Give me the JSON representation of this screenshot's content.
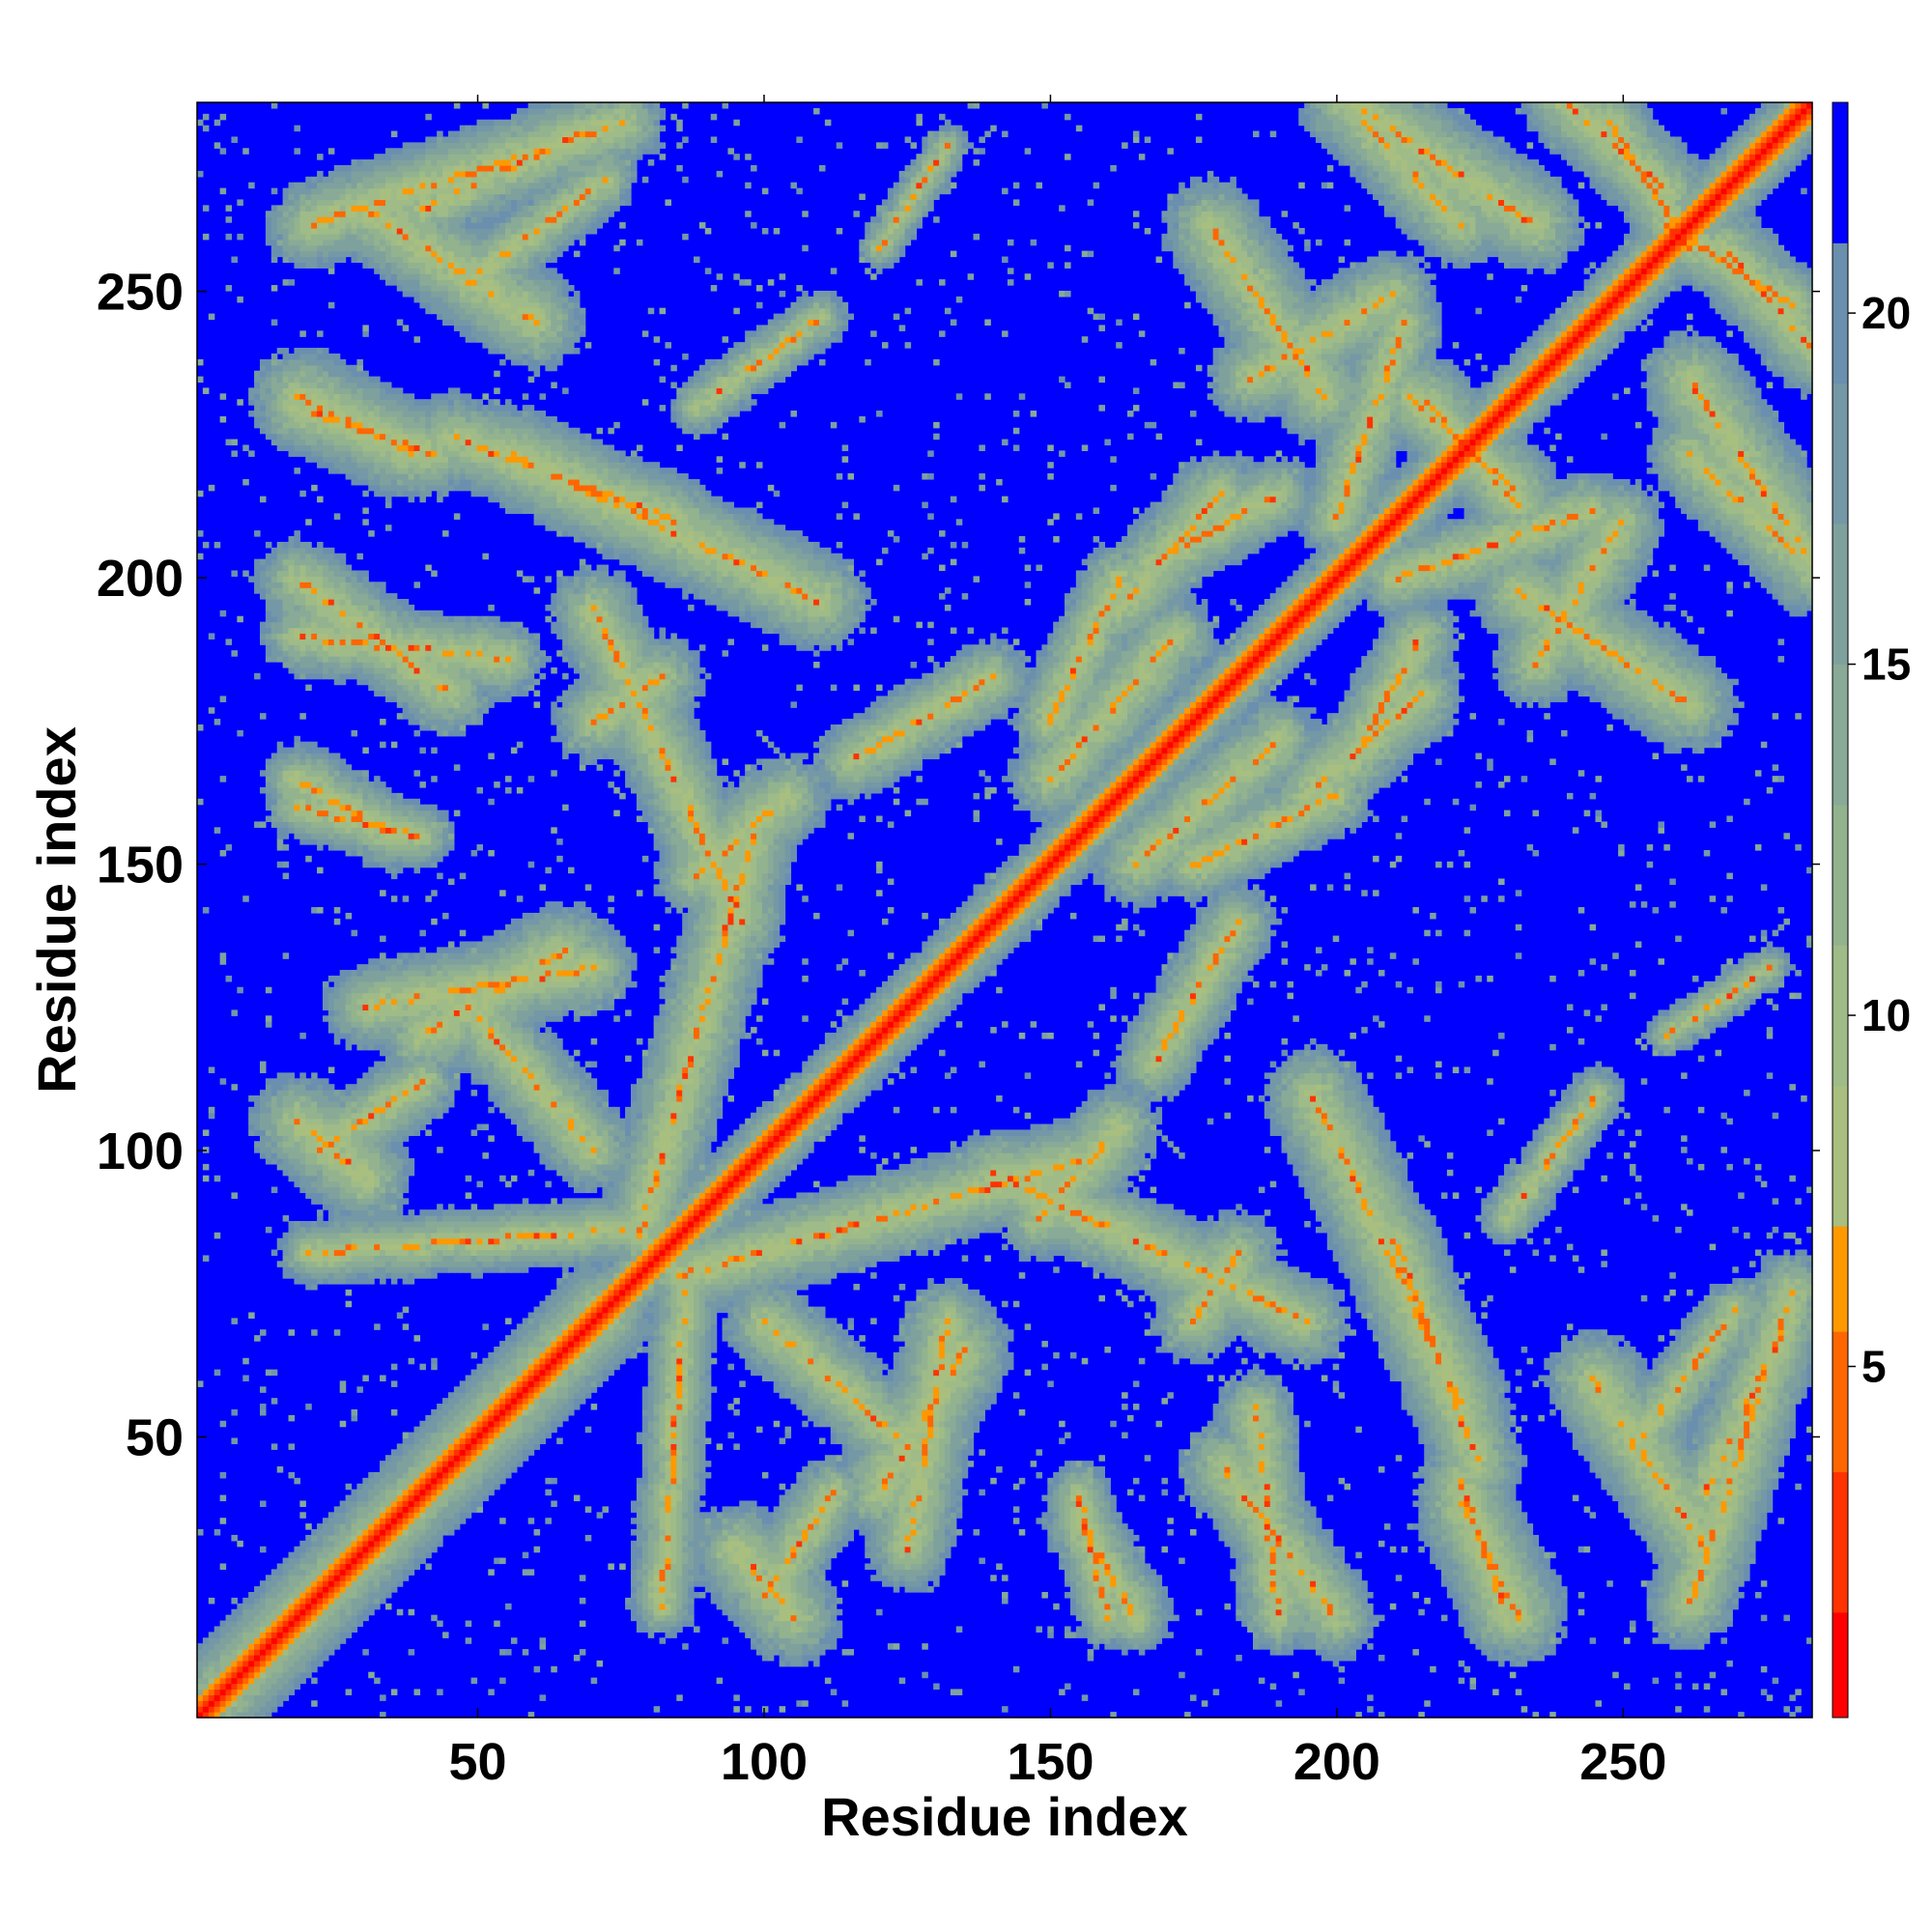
{
  "chart_data": {
    "type": "heatmap",
    "title": "",
    "xlabel": "Residue index",
    "ylabel": "Residue index",
    "xlim": [
      1,
      283
    ],
    "ylim": [
      1,
      283
    ],
    "xticks": [
      50,
      100,
      150,
      200,
      250
    ],
    "yticks": [
      50,
      100,
      150,
      200,
      250
    ],
    "grid": false,
    "colorbar": {
      "ticks": [
        5,
        10,
        15,
        20
      ],
      "range": [
        0,
        23
      ],
      "levels": [
        {
          "from": 0.0,
          "to": 1.5,
          "color": "#ff0000"
        },
        {
          "from": 1.5,
          "to": 3.5,
          "color": "#ff3300"
        },
        {
          "from": 3.5,
          "to": 5.5,
          "color": "#ff6600"
        },
        {
          "from": 5.5,
          "to": 7.0,
          "color": "#ff9900"
        },
        {
          "from": 7.0,
          "to": 9.0,
          "color": "#a9bf7f"
        },
        {
          "from": 9.0,
          "to": 11.0,
          "color": "#9fbb88"
        },
        {
          "from": 11.0,
          "to": 13.0,
          "color": "#93b38f"
        },
        {
          "from": 13.0,
          "to": 15.0,
          "color": "#88aa96"
        },
        {
          "from": 15.0,
          "to": 17.0,
          "color": "#7fa19d"
        },
        {
          "from": 17.0,
          "to": 19.0,
          "color": "#7598a6"
        },
        {
          "from": 19.0,
          "to": 21.0,
          "color": "#6b8fae"
        },
        {
          "from": 21.0,
          "to": 23.0,
          "color": "#0000ff"
        }
      ]
    },
    "background_color": "#0000ff",
    "diagonal_color": "#ff0000",
    "contact_bands": [
      {
        "x": [
          5,
          72
        ],
        "y": [
          5,
          72
        ],
        "orientation": "diag",
        "width": 9
      },
      {
        "x": [
          72,
          283
        ],
        "y": [
          72,
          283
        ],
        "orientation": "diag",
        "width": 6
      },
      {
        "x": [
          20,
          75
        ],
        "y": [
          262,
          280
        ],
        "orientation": "anti",
        "width": 8
      },
      {
        "x": [
          48,
          72
        ],
        "y": [
          252,
          270
        ],
        "orientation": "anti",
        "width": 6
      },
      {
        "x": [
          18,
          42
        ],
        "y": [
          230,
          222
        ],
        "orientation": "anti",
        "width": 8
      },
      {
        "x": [
          55,
          110
        ],
        "y": [
          222,
          196
        ],
        "orientation": "anti",
        "width": 9
      },
      {
        "x": [
          18,
          55
        ],
        "y": [
          190,
          186
        ],
        "orientation": "anti",
        "width": 7
      },
      {
        "x": [
          70,
          82
        ],
        "y": [
          175,
          183
        ],
        "orientation": "diag",
        "width": 8
      },
      {
        "x": [
          88,
          104
        ],
        "y": [
          148,
          162
        ],
        "orientation": "diag",
        "width": 8
      },
      {
        "x": [
          18,
          40
        ],
        "y": [
          160,
          155
        ],
        "orientation": "anti",
        "width": 6
      },
      {
        "x": [
          30,
          70
        ],
        "y": [
          125,
          132
        ],
        "orientation": "diag",
        "width": 8
      },
      {
        "x": [
          22,
          40
        ],
        "y": [
          100,
          112
        ],
        "orientation": "diag",
        "width": 7
      },
      {
        "x": [
          20,
          75
        ],
        "y": [
          82,
          86
        ],
        "orientation": "diag",
        "width": 6
      },
      {
        "x": [
          85,
          155
        ],
        "y": [
          78,
          98
        ],
        "orientation": "diag",
        "width": 8
      },
      {
        "x": [
          140,
          195
        ],
        "y": [
          96,
          70
        ],
        "orientation": "anti",
        "width": 8
      },
      {
        "x": [
          100,
          125
        ],
        "y": [
          70,
          48
        ],
        "orientation": "anti",
        "width": 8
      },
      {
        "x": [
          95,
          105
        ],
        "y": [
          30,
          18
        ],
        "orientation": "anti",
        "width": 9
      },
      {
        "x": [
          120,
          135
        ],
        "y": [
          40,
          65
        ],
        "orientation": "diag",
        "width": 9
      },
      {
        "x": [
          155,
          165
        ],
        "y": [
          35,
          18
        ],
        "orientation": "anti",
        "width": 7
      },
      {
        "x": [
          180,
          200
        ],
        "y": [
          45,
          18
        ],
        "orientation": "anti",
        "width": 8
      },
      {
        "x": [
          222,
          232
        ],
        "y": [
          38,
          18
        ],
        "orientation": "anti",
        "width": 9
      },
      {
        "x": [
          210,
          225
        ],
        "y": [
          85,
          45
        ],
        "orientation": "anti",
        "width": 8
      },
      {
        "x": [
          245,
          265
        ],
        "y": [
          60,
          30
        ],
        "orientation": "anti",
        "width": 9
      },
      {
        "x": [
          265,
          278
        ],
        "y": [
          40,
          68
        ],
        "orientation": "diag",
        "width": 7
      },
      {
        "x": [
          168,
          183
        ],
        "y": [
          115,
          140
        ],
        "orientation": "diag",
        "width": 7
      },
      {
        "x": [
          150,
          172
        ],
        "y": [
          165,
          190
        ],
        "orientation": "diag",
        "width": 8
      },
      {
        "x": [
          172,
          190
        ],
        "y": [
          205,
          215
        ],
        "orientation": "diag",
        "width": 7
      },
      {
        "x": [
          185,
          210
        ],
        "y": [
          235,
          250
        ],
        "orientation": "diag",
        "width": 8
      },
      {
        "x": [
          202,
          235
        ],
        "y": [
          284,
          262
        ],
        "orientation": "anti",
        "width": 9
      },
      {
        "x": [
          240,
          258
        ],
        "y": [
          284,
          268
        ],
        "orientation": "anti",
        "width": 8
      },
      {
        "x": [
          258,
          280
        ],
        "y": [
          262,
          248
        ],
        "orientation": "anti",
        "width": 7
      },
      {
        "x": [
          213,
          232
        ],
        "y": [
          232,
          215
        ],
        "orientation": "anti",
        "width": 8
      },
      {
        "x": [
          262,
          280
        ],
        "y": [
          222,
          205
        ],
        "orientation": "anti",
        "width": 8
      },
      {
        "x": [
          232,
          262
        ],
        "y": [
          198,
          178
        ],
        "orientation": "anti",
        "width": 9
      },
      {
        "x": [
          195,
          215
        ],
        "y": [
          162,
          180
        ],
        "orientation": "diag",
        "width": 8
      },
      {
        "x": [
          175,
          200
        ],
        "y": [
          150,
          162
        ],
        "orientation": "diag",
        "width": 7
      },
      {
        "x": [
          210,
          245
        ],
        "y": [
          200,
          212
        ],
        "orientation": "diag",
        "width": 7
      },
      {
        "x": [
          230,
          246
        ],
        "y": [
          88,
          110
        ],
        "orientation": "diag",
        "width": 5
      },
      {
        "x": [
          258,
          276
        ],
        "y": [
          120,
          132
        ],
        "orientation": "diag",
        "width": 4
      }
    ]
  }
}
